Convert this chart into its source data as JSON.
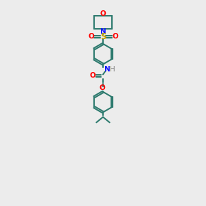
{
  "bg_color": "#ececec",
  "atom_colors": {
    "C": "#2d7a6e",
    "N": "#1414ff",
    "O": "#ff0000",
    "S": "#c8a000",
    "H": "#888888"
  },
  "bond_color": "#2d7a6e",
  "line_width": 1.5,
  "font_size": 7.5,
  "fig_size": [
    3.0,
    3.0
  ],
  "dpi": 100
}
